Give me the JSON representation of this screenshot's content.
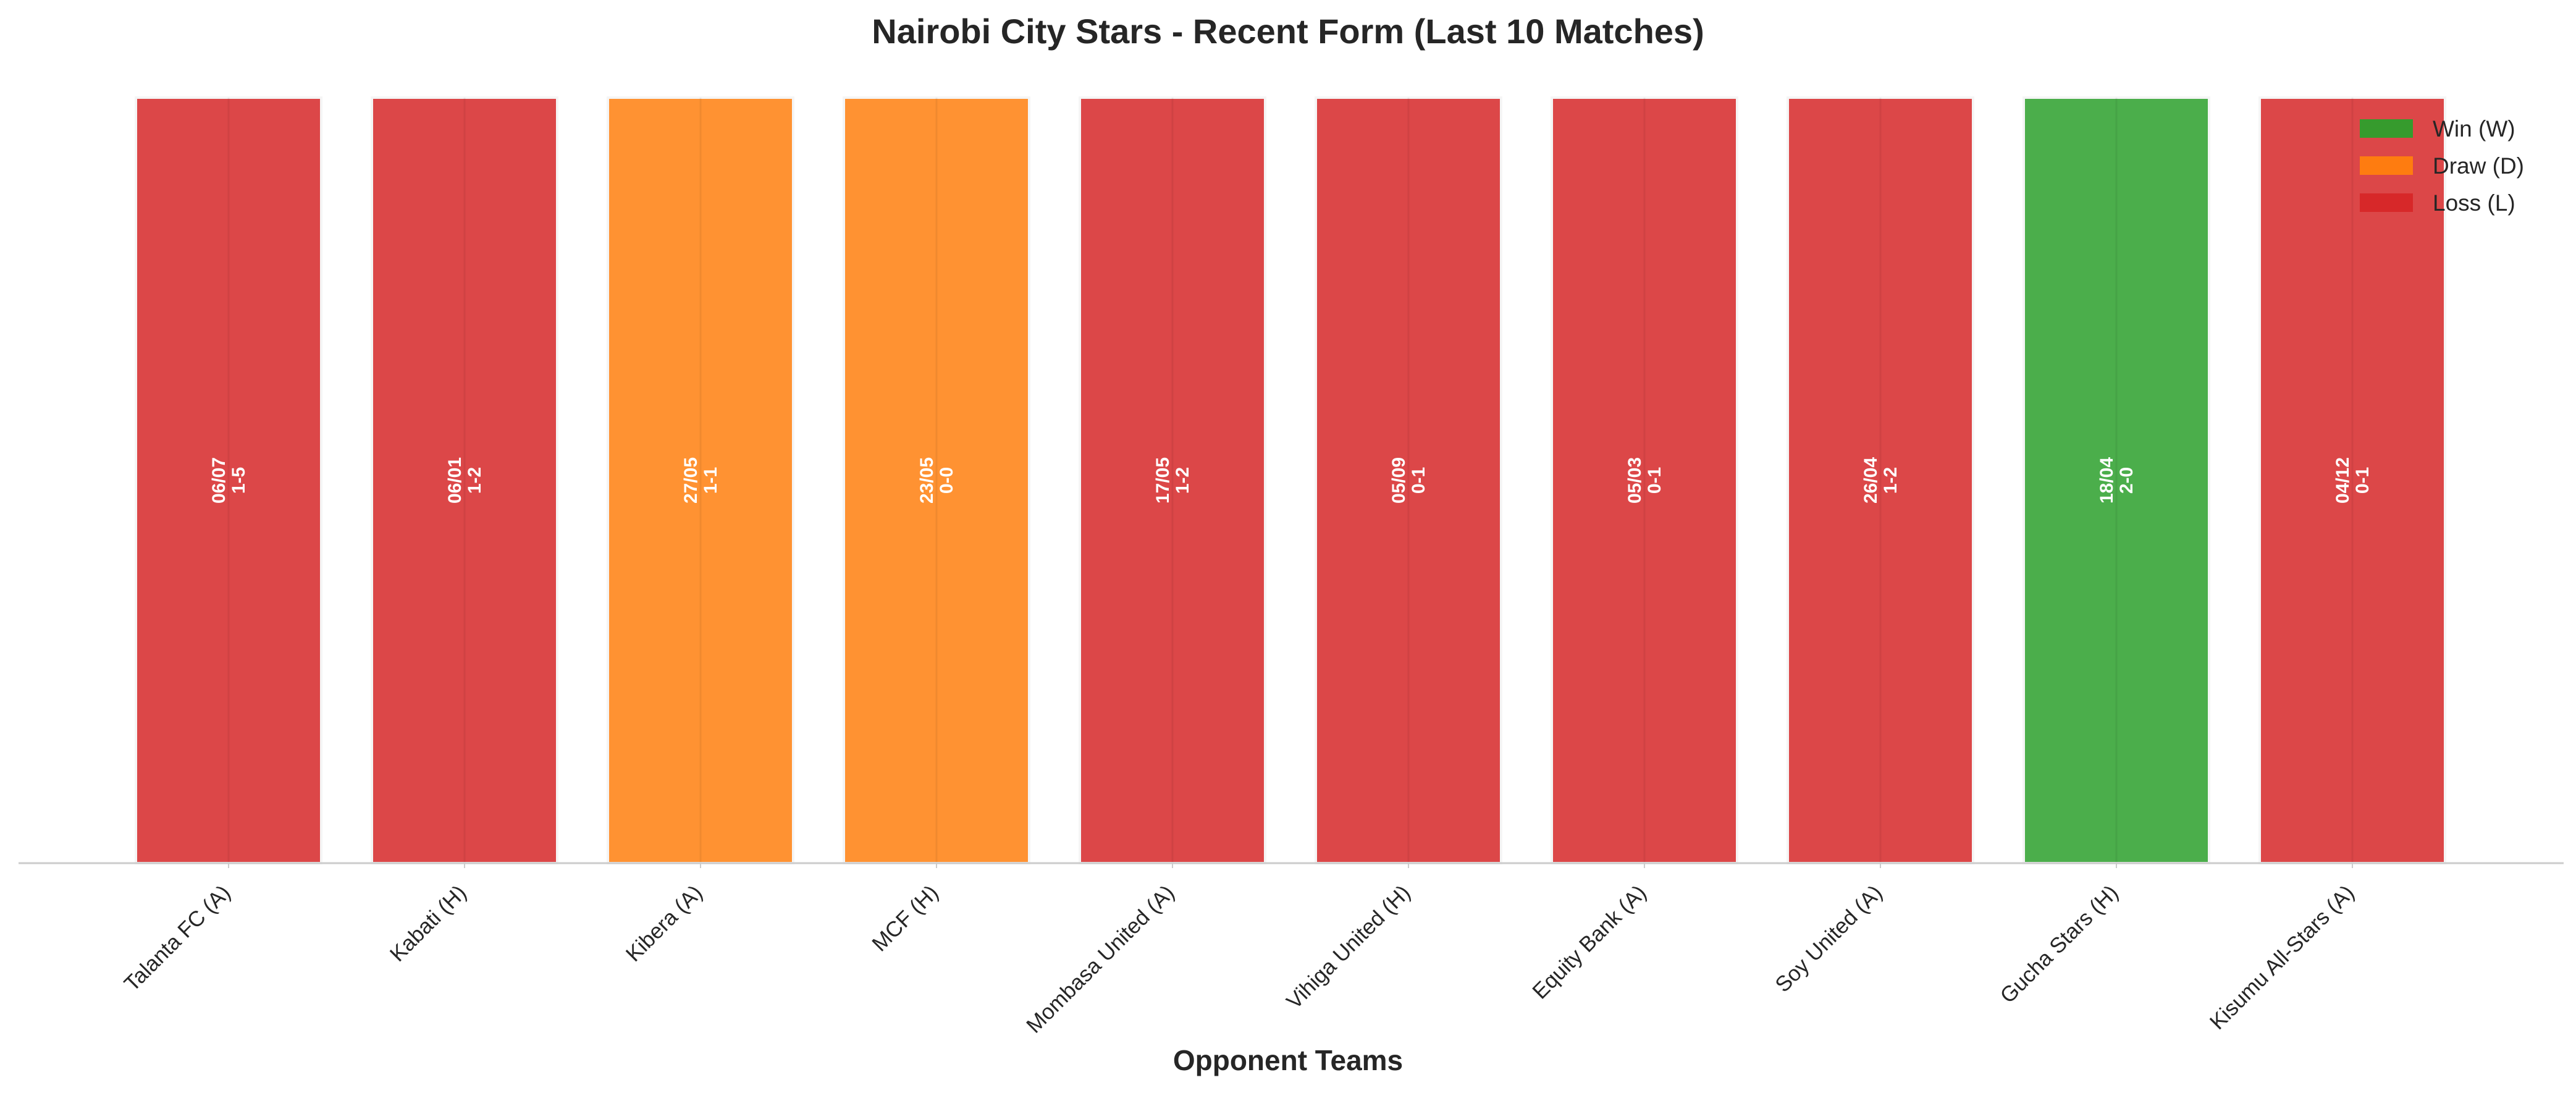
{
  "chart_data": {
    "type": "bar",
    "title": "Nairobi City Stars - Recent Form (Last 10 Matches)",
    "xlabel": "Opponent Teams",
    "ylabel": "",
    "grid": false,
    "legend_position": "top-right",
    "categories": [
      "Talanta FC (A)",
      "Kabati (H)",
      "Kibera (A)",
      "MCF (H)",
      "Mombasa United (A)",
      "Vihiga United (H)",
      "Equity Bank (A)",
      "Soy United (A)",
      "Gucha Stars (H)",
      "Kisumu All-Stars (A)"
    ],
    "values": [
      1,
      1,
      1,
      1,
      1,
      1,
      1,
      1,
      1,
      1
    ],
    "results": [
      "L",
      "L",
      "D",
      "D",
      "L",
      "L",
      "L",
      "L",
      "W",
      "L"
    ],
    "dates": [
      "06/07",
      "06/01",
      "27/05",
      "23/05",
      "17/05",
      "05/09",
      "05/03",
      "26/04",
      "18/04",
      "04/12"
    ],
    "scores": [
      "1-5",
      "1-2",
      "1-1",
      "0-0",
      "1-2",
      "0-1",
      "0-1",
      "1-2",
      "2-0",
      "0-1"
    ],
    "legend": [
      {
        "key": "W",
        "label": "Win (W)",
        "color": "#2ca02c"
      },
      {
        "key": "D",
        "label": "Draw (D)",
        "color": "#ff7f0e"
      },
      {
        "key": "L",
        "label": "Loss (L)",
        "color": "#d62728"
      }
    ],
    "colors": {
      "W": "#2ca02c",
      "D": "#ff7f0e",
      "L": "#d62728"
    }
  }
}
